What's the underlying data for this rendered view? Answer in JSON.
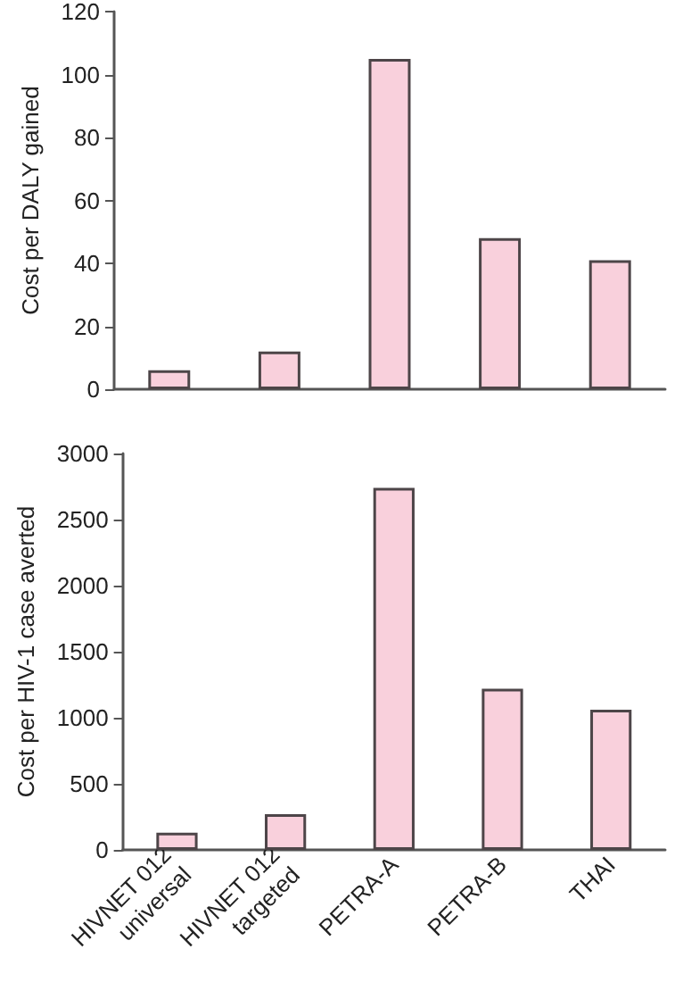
{
  "chart_data": [
    {
      "type": "bar",
      "ylabel": "Cost per DALY gained",
      "categories": [
        null,
        null,
        null,
        null,
        null
      ],
      "values": [
        6,
        12,
        105,
        48,
        41
      ],
      "color": "#f9d0dc",
      "ylim": [
        0,
        120
      ],
      "yticks": [
        0,
        20,
        40,
        60,
        80,
        100,
        120
      ],
      "grid": false,
      "tick_labels": "y"
    },
    {
      "type": "bar",
      "ylabel": "Cost per HIV-1 case averted",
      "categories": [
        "HIVNET 012\nuniversal",
        "HIVNET 012\ntargeted",
        "PETRA-A",
        "PETRA-B",
        "THAI"
      ],
      "values": [
        130,
        270,
        2740,
        1220,
        1060
      ],
      "color": "#f9d0dc",
      "ylim": [
        0,
        3000
      ],
      "yticks": [
        0,
        500,
        1000,
        1500,
        2000,
        2500,
        3000
      ],
      "grid": false
    }
  ]
}
